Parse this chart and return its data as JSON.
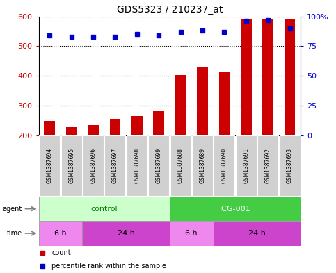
{
  "title": "GDS5323 / 210237_at",
  "samples": [
    "GSM1387694",
    "GSM1387695",
    "GSM1387696",
    "GSM1387697",
    "GSM1387698",
    "GSM1387699",
    "GSM1387688",
    "GSM1387689",
    "GSM1387690",
    "GSM1387691",
    "GSM1387692",
    "GSM1387693"
  ],
  "counts": [
    248,
    228,
    235,
    252,
    265,
    280,
    402,
    428,
    415,
    590,
    593,
    590
  ],
  "percentiles": [
    84,
    83,
    83,
    83,
    85,
    84,
    87,
    88,
    87,
    96,
    97,
    90
  ],
  "ylim_left": [
    200,
    600
  ],
  "ylim_right": [
    0,
    100
  ],
  "yticks_left": [
    200,
    300,
    400,
    500,
    600
  ],
  "yticks_right": [
    0,
    25,
    50,
    75,
    100
  ],
  "left_color": "#cc0000",
  "right_color": "#0000cc",
  "bar_color": "#cc0000",
  "dot_color": "#0000cc",
  "agent_control_label": "control",
  "agent_icg_label": "ICG-001",
  "agent_label": "agent",
  "time_label": "time",
  "time_6h": "6 h",
  "time_24h": "24 h",
  "control_light_color": "#ccffcc",
  "icg_color": "#44cc44",
  "time6_color": "#ee88ee",
  "time24_color": "#cc44cc",
  "legend_count": "count",
  "legend_pct": "percentile rank within the sample",
  "n_control": 6,
  "n_6h_control": 2,
  "n_24h_control": 4,
  "n_6h_icg": 2,
  "n_24h_icg": 4,
  "bar_bottom": 200,
  "bar_width": 0.5
}
